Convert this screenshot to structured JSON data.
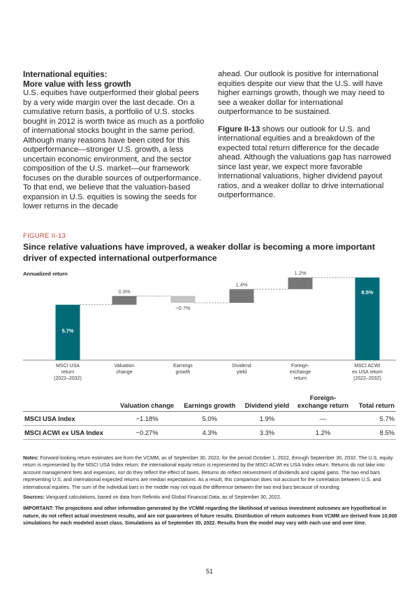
{
  "left_column": {
    "heading1": "International equities:",
    "heading2": "More value with less growth",
    "body": "U.S. equities have outperformed their global peers by a very wide margin over the last decade. On a cumulative return basis, a portfolio of U.S. stocks bought in 2012 is worth twice as much as a portfolio of international stocks bought in the same period. Although many reasons have been cited for this outperformance—stronger U.S. growth, a less uncertain economic environment, and the sector composition of the U.S. market—our framework focuses on the durable sources of outperformance. To that end, we believe that the valuation-based expansion in U.S. equities is sowing the seeds for lower returns in the decade"
  },
  "right_column": {
    "p1": "ahead. Our outlook is positive for international equities despite our view that the U.S. will have higher earnings growth, though we may need to see a weaker dollar for international outperformance to be sustained.",
    "fig_ref": "Figure II-13",
    "p2": " shows our outlook for U.S. and international equities and a breakdown of the expected total return difference for the decade ahead. Although the valuations gap has narrowed since last year, we expect more favorable international valuations, higher dividend payout ratios, and a weaker dollar to drive international outperformance."
  },
  "figure": {
    "label": "FIGURE II-13",
    "title": "Since relative valuations have improved, a weaker dollar is becoming a more important driver of expected international outperformance"
  },
  "chart_data": {
    "type": "waterfall",
    "ylabel": "Annualized return",
    "grid": false,
    "categories": [
      [
        "MSCI USA",
        "return",
        "(2022–2032)"
      ],
      [
        "Valuation",
        "change"
      ],
      [
        "Earnings",
        "growth"
      ],
      [
        "Dividend",
        "yield"
      ],
      [
        "Foreign-",
        "exchange",
        "return"
      ],
      [
        "MSCI ACWI",
        "ex USA return",
        "(2022–2032)"
      ]
    ],
    "values": [
      5.7,
      0.9,
      -0.7,
      1.4,
      1.2,
      8.5
    ],
    "labels": [
      "5.7%",
      "0.9%",
      "−0.7%",
      "1.4%",
      "1.2%",
      "8.5%"
    ],
    "kinds": [
      "total",
      "delta",
      "delta",
      "delta",
      "delta",
      "total"
    ],
    "colors": {
      "total": "#006b77",
      "positive": "#777777",
      "negative": "#c3c3c3"
    }
  },
  "table": {
    "headers": [
      "",
      "Valuation change",
      "Earnings growth",
      "Dividend yield",
      "Foreign-exchange return",
      "Total return"
    ],
    "rows": [
      [
        "MSCI USA Index",
        "−1.18%",
        "5.0%",
        "1.9%",
        "—",
        "5.7%"
      ],
      [
        "MSCI ACWI ex USA Index",
        "−0.27%",
        "4.3%",
        "3.3%",
        "1.2%",
        "8.5%"
      ]
    ]
  },
  "notes": {
    "notes_label": "Notes:",
    "notes": " Forward-looking return estimates are from the VCMM, as of September 30, 2022, for the period October 1, 2022, through September 30, 2032. The U.S. equity return is represented by the MSCI USA Index return; the international equity return is represented by the MSCI ACWI ex USA Index return. Returns do not take into account management fees and expenses, nor do they reflect the effect of taxes. Returns do reflect reinvestment of dividends and capital gains. The two end bars representing U.S. and international expected returns are median expectations. As a result, this comparison does not account for the correlation between U.S. and international equities. The sum of the individual bars in the middle may not equal the difference between the two end bars because of rounding.",
    "sources_label": "Sources:",
    "sources": " Vanguard calculations, based on data from Refinitiv and Global Financial Data, as of September 30, 2022.",
    "important": "IMPORTANT: The projections and other information generated by the VCMM regarding the likelihood of various investment outcomes are hypothetical in nature, do not reflect actual investment results, and are not guarantees of future results. Distribution of return outcomes from VCMM are derived from 10,000 simulations for each modeled asset class. Simulations as of September 30, 2022. Results from the model may vary with each use and over time."
  },
  "page_number": "51"
}
